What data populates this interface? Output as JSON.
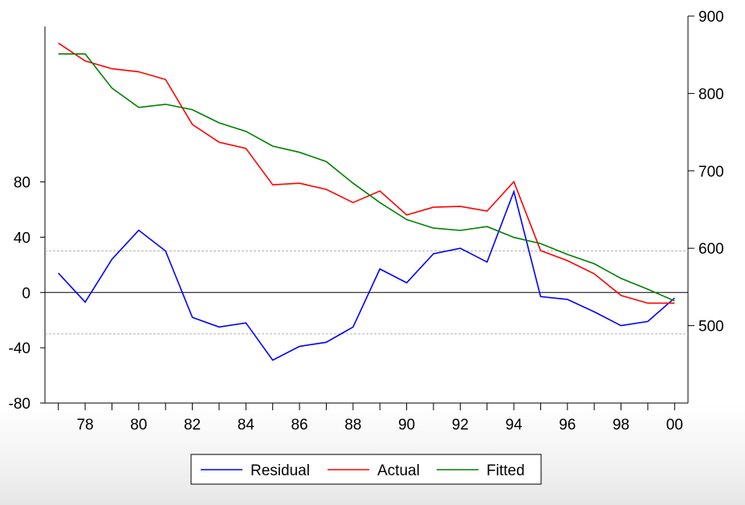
{
  "chart_data": {
    "type": "line",
    "title": "",
    "x": [
      "77",
      "78",
      "79",
      "80",
      "81",
      "82",
      "83",
      "84",
      "85",
      "86",
      "87",
      "88",
      "89",
      "90",
      "91",
      "92",
      "93",
      "94",
      "95",
      "96",
      "97",
      "98",
      "99",
      "00"
    ],
    "x_tick_labels": [
      "78",
      "80",
      "82",
      "84",
      "86",
      "88",
      "90",
      "92",
      "94",
      "96",
      "98",
      "00"
    ],
    "left_axis": {
      "ylim": [
        -80,
        200
      ],
      "ticks": [
        "80",
        "40",
        "0",
        "-40",
        "-80"
      ],
      "tick_values": [
        80,
        40,
        0,
        -40,
        -80
      ]
    },
    "right_axis": {
      "ylim": [
        400,
        900
      ],
      "ticks": [
        "900",
        "800",
        "700",
        "600",
        "500"
      ],
      "tick_values": [
        900,
        800,
        700,
        600,
        500
      ]
    },
    "reference_lines": {
      "zero": 0,
      "upper_band": 30,
      "lower_band": -30
    },
    "series": [
      {
        "name": "Residual",
        "axis": "left",
        "color": "#0000ff",
        "values": [
          14,
          -7,
          24,
          45,
          30,
          -18,
          -25,
          -22,
          -49,
          -39,
          -36,
          -25,
          17,
          7,
          28,
          32,
          22,
          73,
          -3,
          -5,
          -14,
          -24,
          -21,
          -4
        ]
      },
      {
        "name": "Actual",
        "axis": "right",
        "color": "#ff0000",
        "values": [
          865,
          842,
          832,
          828,
          818,
          760,
          737,
          729,
          682,
          684,
          676,
          659,
          674,
          643,
          653,
          654,
          648,
          686,
          597,
          584,
          567,
          539,
          529,
          529
        ]
      },
      {
        "name": "Fitted",
        "axis": "right",
        "color": "#008000",
        "values": [
          851,
          851,
          807,
          782,
          786,
          779,
          762,
          751,
          732,
          724,
          712,
          684,
          659,
          637,
          626,
          623,
          628,
          614,
          606,
          592,
          580,
          561,
          547,
          532
        ]
      }
    ],
    "legend": {
      "position": "bottom-center",
      "entries": [
        "Residual",
        "Actual",
        "Fitted"
      ]
    }
  }
}
